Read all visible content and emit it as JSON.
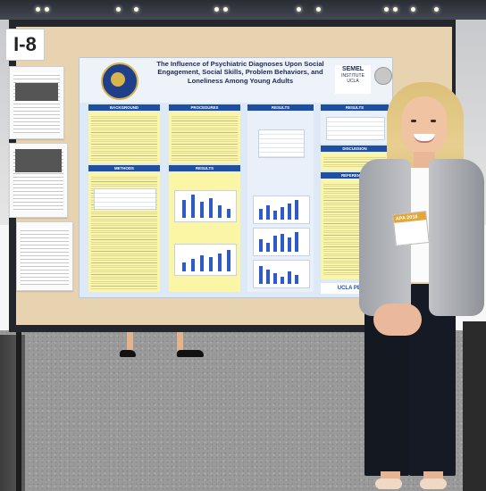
{
  "booth_number": "I-8",
  "poster": {
    "title": "The Influence of Psychiatric Diagnoses Upon Social Engagement, Social Skills, Problem Behaviors, and Loneliness Among Young Adults",
    "institute_name": "SEMEL",
    "institute_subtitle": "INSTITUTE",
    "institute_university": "UCLA",
    "footer_logo": "UCLA PEERS",
    "section_headings": {
      "col1_top": "BACKGROUND",
      "col1_bottom": "METHODS",
      "col2_top": "PROCEDURES",
      "col2_bottom": "RESULTS",
      "col3_top": "RESULTS",
      "col4_top": "RESULTS",
      "col4_mid": "DISCUSSION",
      "col4_low": "REFERENCES"
    }
  },
  "badge_text": "APA 2018",
  "colors": {
    "poster_header_blue": "#1f4fa0",
    "section_yellow": "#fbf6a6",
    "board_tan": "#e7d3b0",
    "bar_blue": "#2f5bc2"
  }
}
